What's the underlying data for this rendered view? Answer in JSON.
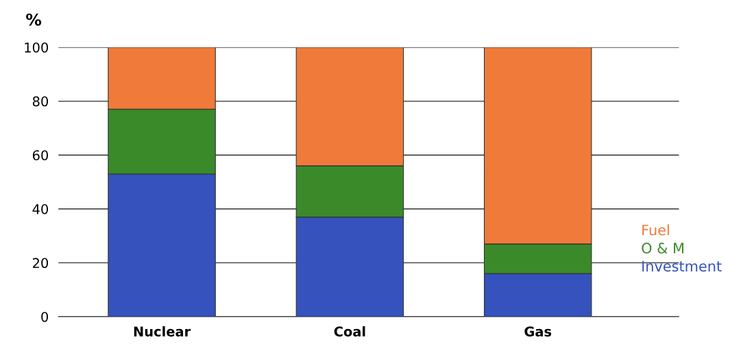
{
  "chart_data": {
    "type": "bar",
    "stacked": true,
    "ylabel": "%",
    "categories": [
      "Nuclear",
      "Coal",
      "Gas"
    ],
    "series": [
      {
        "name": "Investment",
        "color": "#3552bd",
        "values": [
          53,
          37,
          16
        ]
      },
      {
        "name": "O & M",
        "color": "#3a8a2a",
        "values": [
          24,
          19,
          11
        ]
      },
      {
        "name": "Fuel",
        "color": "#f07a3a",
        "values": [
          23,
          44,
          73
        ]
      }
    ],
    "ylim": [
      0,
      100
    ],
    "yticks": [
      0,
      20,
      40,
      60,
      80,
      100
    ],
    "grid": "y",
    "legend": "right"
  }
}
